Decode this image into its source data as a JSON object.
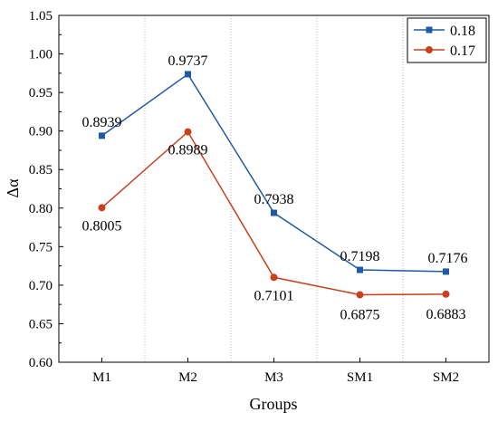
{
  "chart_data": {
    "type": "line",
    "title": "",
    "xlabel": "Groups",
    "ylabel": "Δα",
    "categories": [
      "M1",
      "M2",
      "M3",
      "SM1",
      "SM2"
    ],
    "ylim": [
      0.6,
      1.05
    ],
    "yticks": [
      "0.60",
      "0.65",
      "0.70",
      "0.75",
      "0.80",
      "0.85",
      "0.90",
      "0.95",
      "1.00",
      "1.05"
    ],
    "grid": "vertical dotted",
    "legend_position": "top-right",
    "series": [
      {
        "name": "0.18",
        "color": "#1f5aa6",
        "marker": "square",
        "values": [
          0.8939,
          0.9737,
          0.7938,
          0.7198,
          0.7176
        ],
        "labels": [
          "0.8939",
          "0.9737",
          "0.7938",
          "0.7198",
          "0.7176"
        ],
        "label_side": [
          "above",
          "above",
          "above",
          "above",
          "above"
        ]
      },
      {
        "name": "0.17",
        "color": "#c8401e",
        "marker": "circle",
        "values": [
          0.8005,
          0.8989,
          0.7101,
          0.6875,
          0.6883
        ],
        "labels": [
          "0.8005",
          "0.8989",
          "0.7101",
          "0.6875",
          "0.6883"
        ],
        "label_side": [
          "below",
          "below",
          "below",
          "below",
          "below"
        ]
      }
    ]
  }
}
